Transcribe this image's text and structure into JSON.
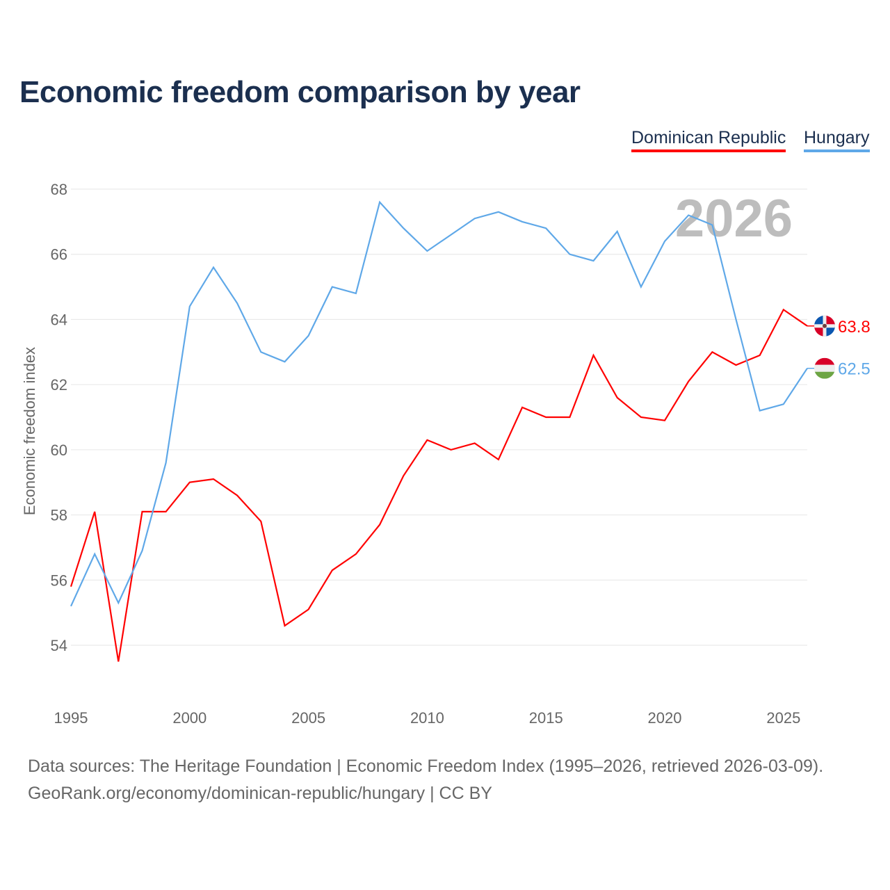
{
  "chart_data": {
    "type": "line",
    "title": "Economic freedom comparison by year",
    "xlabel": "",
    "ylabel": "Economic freedom index",
    "year_watermark": "2026",
    "xlim": [
      1995,
      2026
    ],
    "ylim": [
      54,
      68
    ],
    "x_ticks": [
      1995,
      2000,
      2005,
      2010,
      2015,
      2020,
      2025
    ],
    "y_ticks": [
      54,
      56,
      58,
      60,
      62,
      64,
      66,
      68
    ],
    "grid": true,
    "legend_position": "top-right",
    "x": [
      1995,
      1996,
      1997,
      1998,
      1999,
      2000,
      2001,
      2002,
      2003,
      2004,
      2005,
      2006,
      2007,
      2008,
      2009,
      2010,
      2011,
      2012,
      2013,
      2014,
      2015,
      2016,
      2017,
      2018,
      2019,
      2020,
      2021,
      2022,
      2023,
      2024,
      2025,
      2026
    ],
    "series": [
      {
        "name": "Dominican Republic",
        "color": "#ff0000",
        "end_label": "63.8",
        "values": [
          55.8,
          58.1,
          53.5,
          58.1,
          58.1,
          59.0,
          59.1,
          58.6,
          57.8,
          54.6,
          55.1,
          56.3,
          56.8,
          57.7,
          59.2,
          60.3,
          60.0,
          60.2,
          59.7,
          61.3,
          61.0,
          61.0,
          62.9,
          61.6,
          61.0,
          60.9,
          62.1,
          63.0,
          62.6,
          62.9,
          64.3,
          63.8
        ]
      },
      {
        "name": "Hungary",
        "color": "#5fa8e8",
        "end_label": "62.5",
        "values": [
          55.2,
          56.8,
          55.3,
          56.9,
          59.6,
          64.4,
          65.6,
          64.5,
          63.0,
          62.7,
          63.5,
          65.0,
          64.8,
          67.6,
          66.8,
          66.1,
          66.6,
          67.1,
          67.3,
          67.0,
          66.8,
          66.0,
          65.8,
          66.7,
          65.0,
          66.4,
          67.2,
          66.9,
          64.0,
          61.2,
          61.4,
          62.5
        ]
      }
    ]
  },
  "footer": {
    "sources": "Data sources: The Heritage Foundation | Economic Freedom Index (1995–2026, retrieved 2026-03-09).",
    "credit": "GeoRank.org/economy/dominican-republic/hungary | CC BY"
  }
}
